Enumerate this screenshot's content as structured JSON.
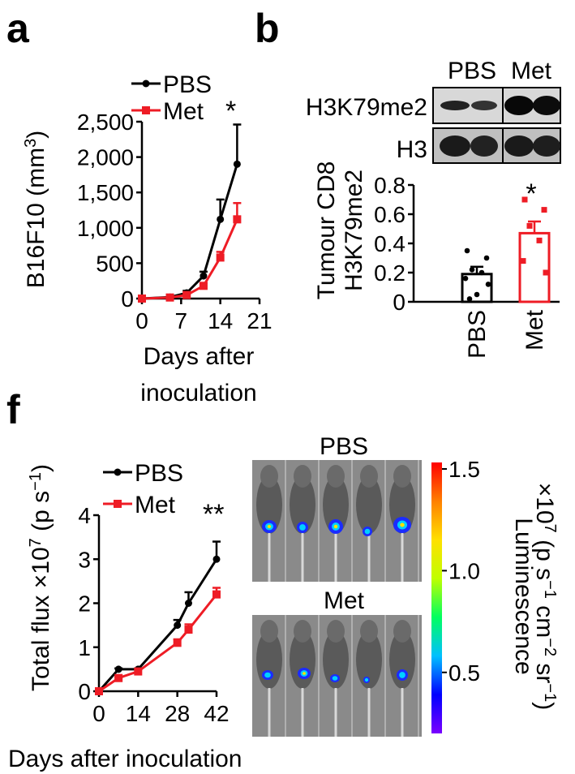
{
  "panels": {
    "a": {
      "label": "a",
      "legend": [
        "PBS",
        "Met"
      ],
      "significance": "*",
      "ylabel": "B16F10 (mm",
      "ylabel_sup": "3",
      "ylabel_close": ")",
      "xlabel_line1": "Days after",
      "xlabel_line2": "inoculation"
    },
    "b": {
      "label": "b",
      "blot_headers": [
        "PBS",
        "Met"
      ],
      "blot_rows": [
        "H3K79me2",
        "H3"
      ],
      "ylabel_line1": "Tumour CD8",
      "ylabel_line2": "H3K79me2",
      "significance": "*"
    },
    "f": {
      "label": "f",
      "legend": [
        "PBS",
        "Met"
      ],
      "significance": "**",
      "ylabel": "Total flux ×10",
      "ylabel_exp": "7",
      "ylabel_unit": " (p s",
      "ylabel_unit_exp": "−1",
      "ylabel_close": ")",
      "xlabel": "Days after inoculation",
      "image_titles": [
        "PBS",
        "Met"
      ],
      "colorbar_label": "Luminescence",
      "colorbar_unit_line": "×10",
      "colorbar_unit_exp": "7",
      "colorbar_unit_rest": " (p s",
      "colorbar_unit_e1": "−1",
      "colorbar_unit_mid": " cm",
      "colorbar_unit_e2": "−2",
      "colorbar_unit_mid2": " sr",
      "colorbar_unit_e3": "−1",
      "colorbar_unit_close": ")",
      "colorbar_ticks": [
        "0.5",
        "1.0",
        "1.5"
      ],
      "colorbar_tick_values": [
        0.5,
        1.0,
        1.5
      ],
      "colorbar_range": [
        0.2,
        1.5
      ],
      "colorbar_colors": [
        "#7a00ff",
        "#0000ff",
        "#00c0ff",
        "#00ff60",
        "#c0ff00",
        "#ffe000",
        "#ff8000",
        "#ff0000"
      ]
    }
  },
  "colors": {
    "pbs": "#000000",
    "met": "#ee1c25"
  },
  "chart_data": [
    {
      "type": "line",
      "panel": "a",
      "x": [
        0,
        5,
        8,
        11,
        14,
        17
      ],
      "xticks": [
        0,
        7,
        14,
        21
      ],
      "xlim": [
        0,
        21
      ],
      "ylim": [
        0,
        2500
      ],
      "yticks": [
        0,
        500,
        1000,
        1500,
        2000,
        2500
      ],
      "ytick_labels": [
        "0",
        "500",
        "1,000",
        "1,500",
        "2,000",
        "2,500"
      ],
      "series": [
        {
          "name": "PBS",
          "values": [
            0,
            20,
            80,
            320,
            1120,
            1900
          ],
          "errors": [
            0,
            10,
            30,
            60,
            280,
            560
          ]
        },
        {
          "name": "Met",
          "values": [
            0,
            15,
            50,
            180,
            580,
            1120
          ],
          "errors": [
            0,
            8,
            20,
            40,
            80,
            230
          ]
        }
      ]
    },
    {
      "type": "bar",
      "panel": "b",
      "categories": [
        "PBS",
        "Met"
      ],
      "values": [
        0.19,
        0.47
      ],
      "errors": [
        0.05,
        0.08
      ],
      "points": [
        [
          0.35,
          0.3,
          0.22,
          0.2,
          0.16,
          0.12,
          0.05,
          0.02
        ],
        [
          0.7,
          0.63,
          0.52,
          0.42,
          0.28,
          0.2
        ]
      ],
      "ylim": [
        0,
        0.8
      ],
      "yticks": [
        0,
        0.2,
        0.4,
        0.6,
        0.8
      ],
      "ytick_labels": [
        "0",
        "0.2",
        "0.4",
        "0.6",
        "0.8"
      ]
    },
    {
      "type": "line",
      "panel": "f",
      "x": [
        0,
        7,
        14,
        21,
        28,
        32,
        42
      ],
      "xticks": [
        0,
        14,
        28,
        42
      ],
      "xlim": [
        0,
        42
      ],
      "ylim": [
        0,
        4
      ],
      "yticks": [
        0,
        1,
        2,
        3,
        4
      ],
      "ytick_labels": [
        "0",
        "1",
        "2",
        "3",
        "4"
      ],
      "series": [
        {
          "name": "PBS",
          "values": [
            0,
            0.5,
            0.5,
            null,
            1.5,
            2.0,
            3.0
          ],
          "errors": [
            0,
            0.02,
            0.02,
            null,
            0.12,
            0.25,
            0.4
          ]
        },
        {
          "name": "Met",
          "values": [
            0,
            0.3,
            0.45,
            null,
            1.1,
            1.4,
            2.2
          ],
          "errors": [
            0,
            0.02,
            0.05,
            null,
            0.08,
            0.12,
            0.15
          ]
        }
      ]
    }
  ]
}
